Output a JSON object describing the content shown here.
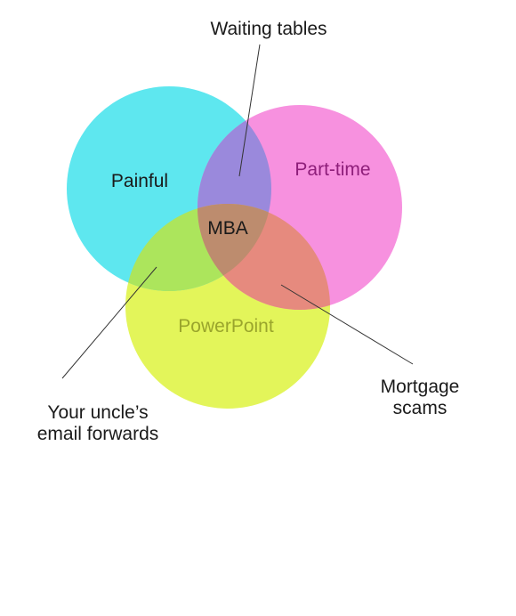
{
  "colors": {
    "painful": "#5ee7ef",
    "part_time": "#f791df",
    "powerpoint": "#e3f55a",
    "painful_parttime": "#9a89dc",
    "painful_powerpoint": "#ace55c",
    "parttime_powerpoint": "#e68a7e",
    "center": "#bd8c6e",
    "text_dark": "#1a1a1a",
    "text_magenta": "#8e1e7a",
    "text_olive": "#9aa52c",
    "pointer": "#333333"
  },
  "sets": {
    "painful": "Painful",
    "part_time": "Part-time",
    "powerpoint": "PowerPoint"
  },
  "center_label": "MBA",
  "intersections": {
    "painful_parttime": "Waiting tables",
    "painful_powerpoint_line1": "Your uncle’s",
    "painful_powerpoint_line2": "email forwards",
    "parttime_powerpoint_line1": "Mortgage",
    "parttime_powerpoint_line2": "scams"
  }
}
